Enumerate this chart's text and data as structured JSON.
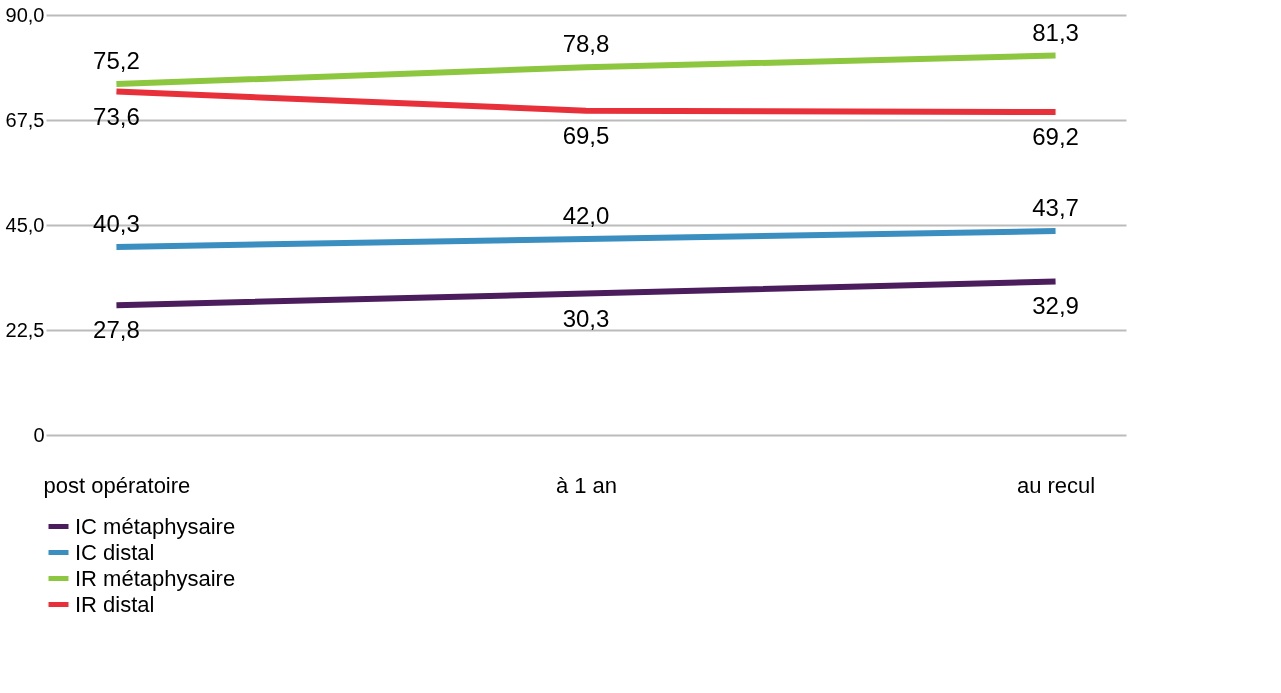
{
  "chart_data": {
    "type": "line",
    "categories": [
      "post opératoire",
      "à 1 an",
      "au recul"
    ],
    "series": [
      {
        "name": "IC métaphysaire",
        "color": "#4b1d5c",
        "values": [
          27.8,
          30.3,
          32.9
        ],
        "value_labels": [
          "27,8",
          "30,3",
          "32,9"
        ]
      },
      {
        "name": "IC distal",
        "color": "#3a8fc0",
        "values": [
          40.3,
          42.0,
          43.7
        ],
        "value_labels": [
          "40,3",
          "42,0",
          "43,7"
        ]
      },
      {
        "name": "IR métaphysaire",
        "color": "#8dc63f",
        "values": [
          75.2,
          78.8,
          81.3
        ],
        "value_labels": [
          "75,2",
          "78,8",
          "81,3"
        ]
      },
      {
        "name": "IR distal",
        "color": "#e8303a",
        "values": [
          73.6,
          69.5,
          69.2
        ],
        "value_labels": [
          "73,6",
          "69,5",
          "69,2"
        ]
      }
    ],
    "ylim": [
      0,
      90
    ],
    "yticks": [
      0,
      {
        "value": 22.5,
        "label": "22,5"
      },
      {
        "value": 45,
        "label": "45,0"
      },
      {
        "value": 67.5,
        "label": "67,5"
      },
      {
        "value": 90,
        "label": "90,0"
      }
    ],
    "grid": "y",
    "legend": "bottom",
    "marker": "none",
    "line_style": "solid"
  }
}
